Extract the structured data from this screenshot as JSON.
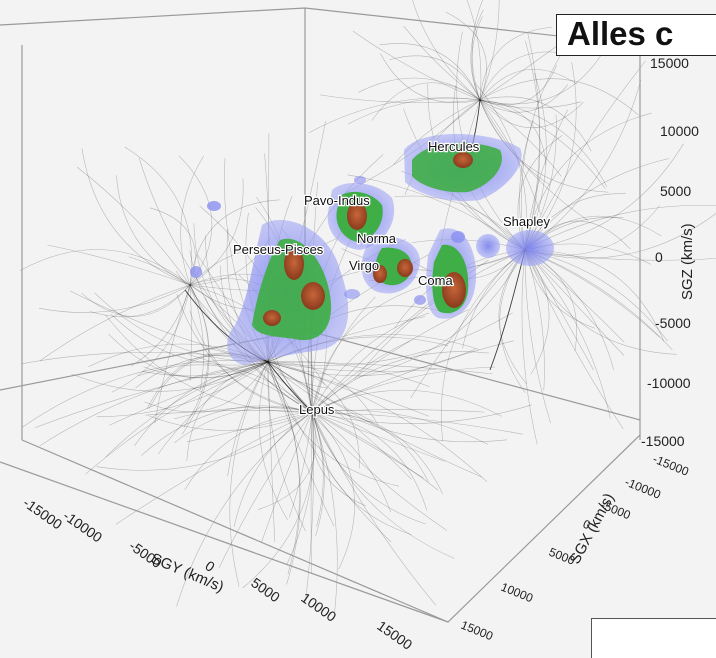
{
  "title": "Alles c",
  "labels": {
    "hercules": "Hercules",
    "pavo_indus": "Pavo-Indus",
    "perseus_pisces": "Perseus-Pisces",
    "norma": "Norma",
    "virgo": "Virgo",
    "coma": "Coma",
    "shapley": "Shapley",
    "lepus": "Lepus"
  },
  "axes": {
    "sgz": {
      "title": "SGZ (km/s)",
      "ticks": [
        "15000",
        "10000",
        "5000",
        "0",
        "-5000",
        "-10000",
        "-15000"
      ]
    },
    "sgx": {
      "title": "SGX (km/s)",
      "ticks": [
        "-15000",
        "-10000",
        "-5000",
        "0",
        "5000",
        "10000",
        "15000"
      ]
    },
    "sgy": {
      "title": "SGY (km/s)",
      "ticks": [
        "-15000",
        "-10000",
        "-5000",
        "0",
        "5000",
        "10000",
        "15000"
      ]
    }
  },
  "colors": {
    "blue_density": "#8a8ff0",
    "green_density": "#3fb04a",
    "red_density": "#b5532c",
    "flowlines": "#111111"
  }
}
